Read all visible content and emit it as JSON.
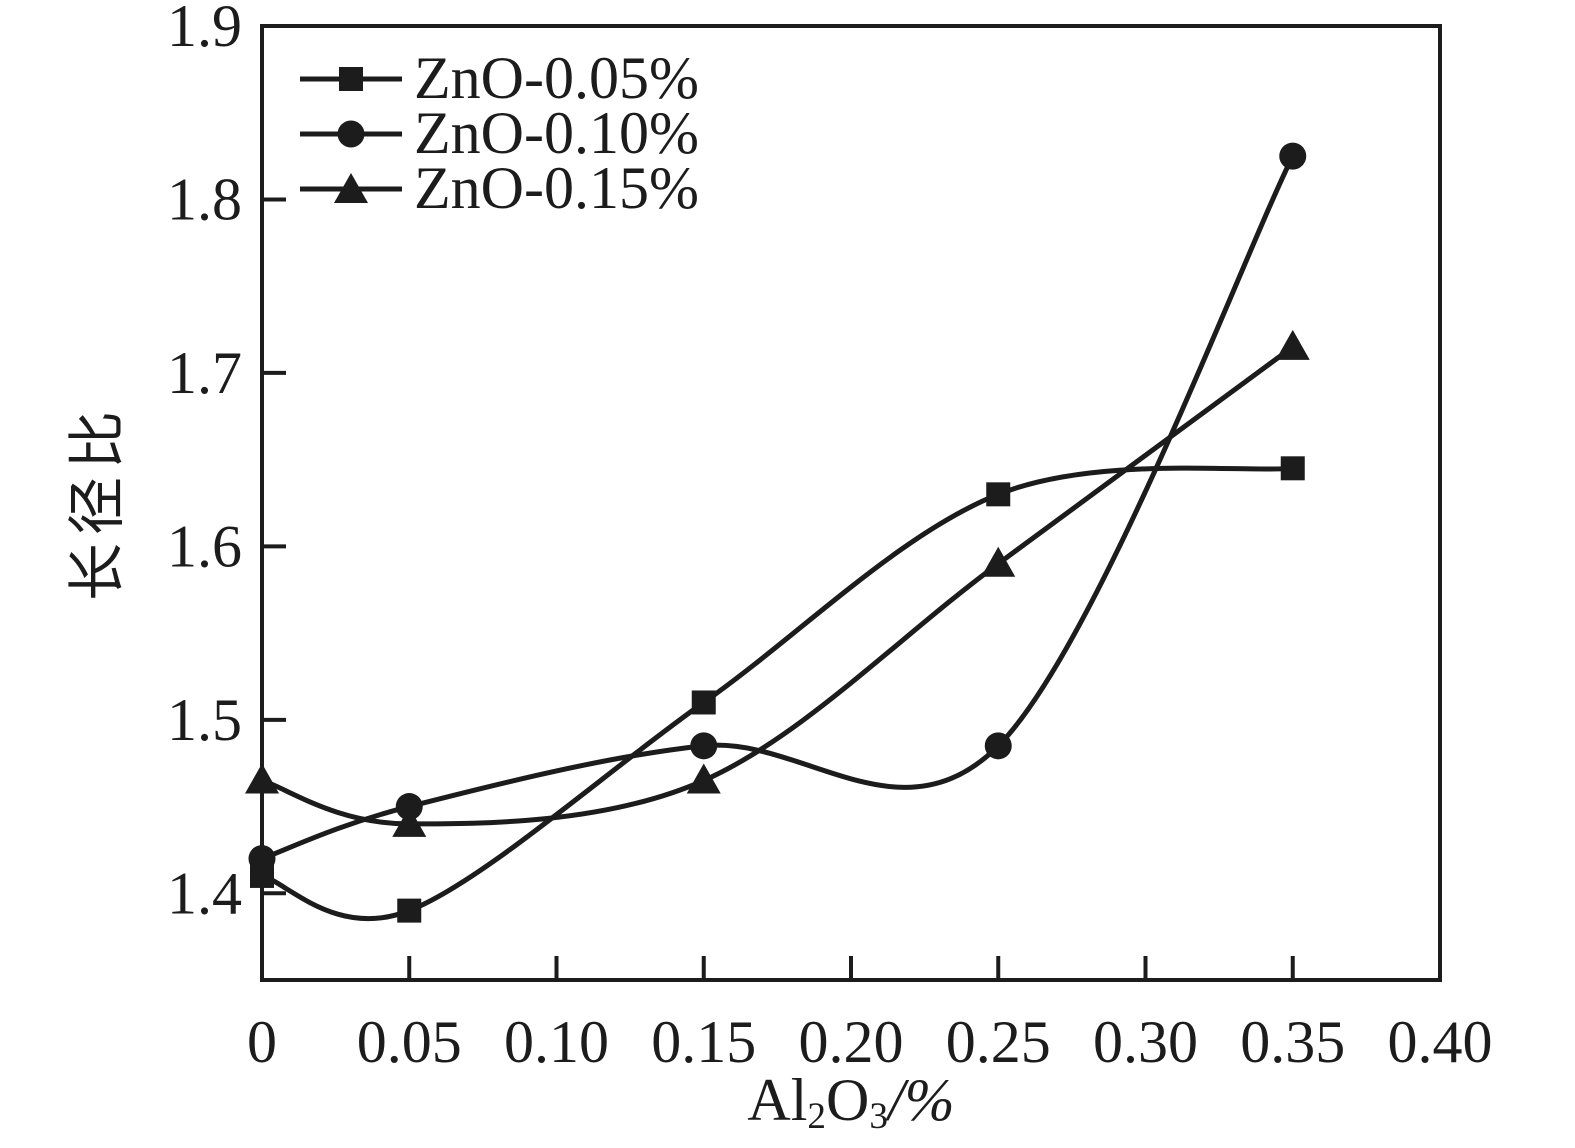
{
  "chart_data": {
    "type": "line",
    "title": "",
    "xlabel": "Al2O3/%",
    "xlabel_parts": [
      "Al",
      "2",
      "O",
      "3",
      "/%"
    ],
    "ylabel": "长径比",
    "x": [
      0,
      0.05,
      0.15,
      0.25,
      0.35
    ],
    "series": [
      {
        "name": "ZnO-0.05%",
        "marker": "square",
        "values": [
          1.41,
          1.39,
          1.51,
          1.63,
          1.645
        ]
      },
      {
        "name": "ZnO-0.10%",
        "marker": "circle",
        "values": [
          1.42,
          1.45,
          1.485,
          1.485,
          1.825
        ]
      },
      {
        "name": "ZnO-0.15%",
        "marker": "triangle",
        "values": [
          1.465,
          1.44,
          1.465,
          1.59,
          1.715
        ]
      }
    ],
    "xlim": [
      0,
      0.4
    ],
    "ylim": [
      1.35,
      1.9
    ],
    "xticks": [
      0,
      0.05,
      0.1,
      0.15,
      0.2,
      0.25,
      0.3,
      0.35,
      0.4
    ],
    "xtick_labels": [
      "0",
      "0.05",
      "0.10",
      "0.15",
      "0.20",
      "0.25",
      "0.30",
      "0.35",
      "0.40"
    ],
    "yticks": [
      1.4,
      1.5,
      1.6,
      1.7,
      1.8,
      1.9
    ],
    "ytick_labels": [
      "1.4",
      "1.5",
      "1.6",
      "1.7",
      "1.8",
      "1.9"
    ],
    "legend_position": "top-left",
    "grid": false,
    "curve_style": "smooth-spline",
    "colors": {
      "line": "#1c1c1c",
      "text": "#1c1c1c",
      "background": "#ffffff"
    }
  }
}
